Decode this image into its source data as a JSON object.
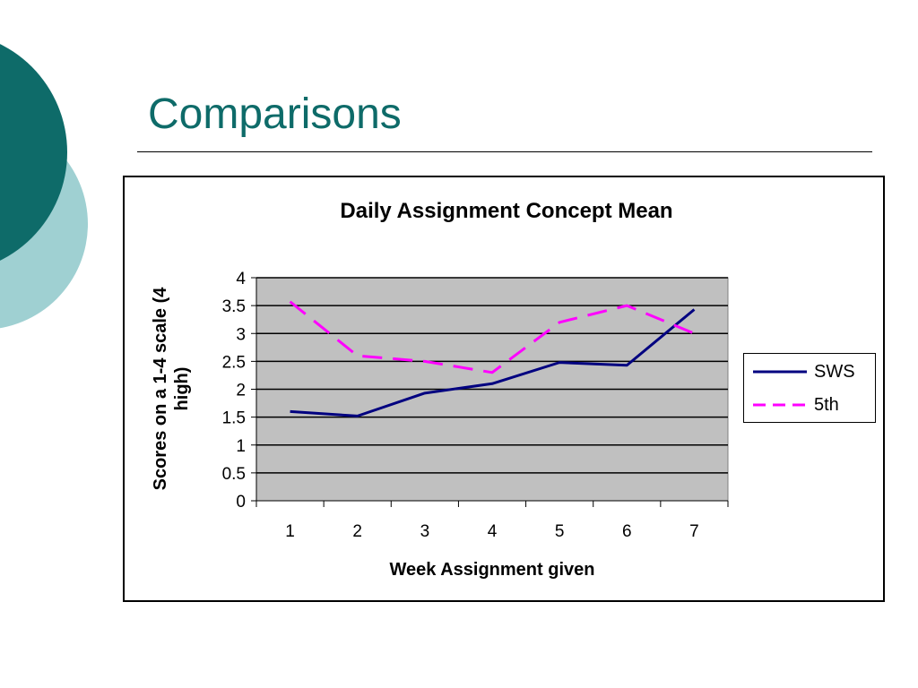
{
  "slide": {
    "title": "Comparisons",
    "accent_colors": {
      "dark_teal": "#0e6b69",
      "light_teal": "#9fd0d2"
    }
  },
  "chart_data": {
    "type": "line",
    "title": "Daily Assignment Concept Mean",
    "xlabel": "Week Assignment given",
    "ylabel": "Scores on a 1-4 scale (4 high)",
    "ylabel_lines": [
      "Scores on a 1-4 scale (4",
      "high)"
    ],
    "categories": [
      "1",
      "2",
      "3",
      "4",
      "5",
      "6",
      "7"
    ],
    "ylim": [
      0,
      4
    ],
    "yticks": [
      "0",
      "0.5",
      "1",
      "1.5",
      "2",
      "2.5",
      "3",
      "3.5",
      "4"
    ],
    "grid": true,
    "plot_background": "#c0c0c0",
    "legend": {
      "placement": "right"
    },
    "series": [
      {
        "name": "SWS",
        "values": [
          1.6,
          1.52,
          1.93,
          2.1,
          2.48,
          2.43,
          3.43
        ],
        "color": "#000080",
        "style": "solid"
      },
      {
        "name": "5th",
        "values": [
          3.57,
          2.6,
          2.5,
          2.3,
          3.2,
          3.5,
          3.0
        ],
        "color": "#ff00ff",
        "style": "dashed"
      }
    ]
  }
}
